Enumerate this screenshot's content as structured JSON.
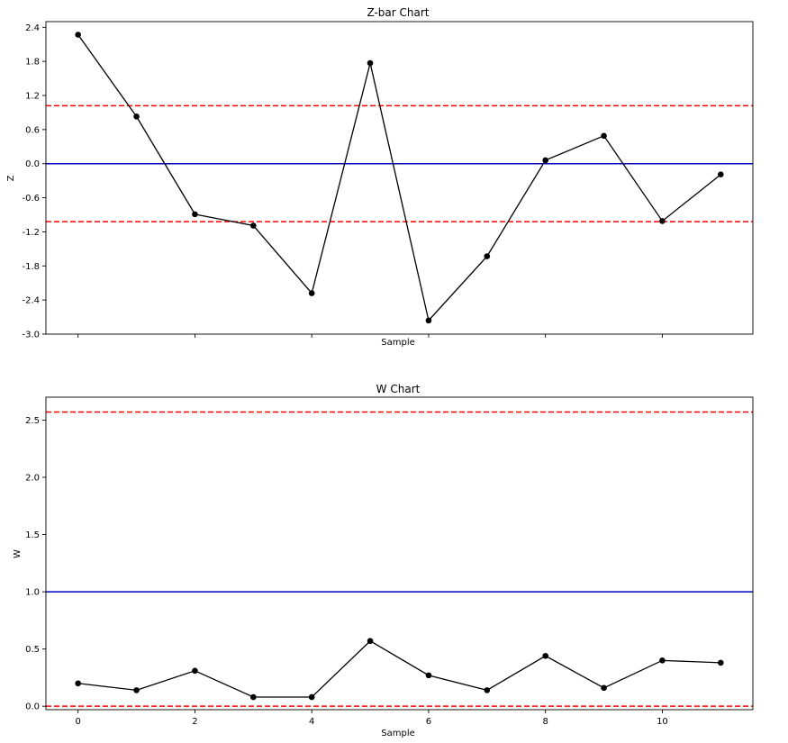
{
  "chart_data": [
    {
      "type": "line",
      "title": "Z-bar Chart",
      "xlabel": "Sample",
      "ylabel": "Z",
      "x": [
        0,
        1,
        2,
        3,
        4,
        5,
        6,
        7,
        8,
        9,
        10,
        11
      ],
      "xlim": [
        -0.55,
        11.55
      ],
      "ylim": [
        -3.0,
        2.5
      ],
      "yticks": [
        "2.4",
        "1.8",
        "1.2",
        "0.6",
        "0.0",
        "-0.6",
        "-1.2",
        "-1.8",
        "-2.4",
        "-3.0"
      ],
      "ytick_values": [
        2.4,
        1.8,
        1.2,
        0.6,
        0.0,
        -0.6,
        -1.2,
        -1.8,
        -2.4,
        -3.0
      ],
      "xticks": [
        0,
        2,
        4,
        6,
        8,
        10
      ],
      "xtick_labels_shown": false,
      "series": [
        {
          "values": [
            2.27,
            0.83,
            -0.89,
            -1.09,
            -2.28,
            1.77,
            -2.76,
            -1.63,
            0.06,
            0.49,
            -1.01,
            -0.19
          ],
          "color": "#000000",
          "marker": "circle"
        }
      ],
      "hlines": [
        {
          "value": 1.02,
          "color": "#ff0000",
          "style": "dashed"
        },
        {
          "value": 0.0,
          "color": "#0000bf",
          "style": "solid"
        },
        {
          "value": -1.02,
          "color": "#ff0000",
          "style": "dashed"
        }
      ],
      "grid": false
    },
    {
      "type": "line",
      "title": "W Chart",
      "xlabel": "Sample",
      "ylabel": "W",
      "x": [
        0,
        1,
        2,
        3,
        4,
        5,
        6,
        7,
        8,
        9,
        10,
        11
      ],
      "xlim": [
        -0.55,
        11.55
      ],
      "ylim": [
        -0.03,
        2.7
      ],
      "yticks": [
        "2.5",
        "2.0",
        "1.5",
        "1.0",
        "0.5",
        "0.0"
      ],
      "ytick_values": [
        2.5,
        2.0,
        1.5,
        1.0,
        0.5,
        0.0
      ],
      "xticks": [
        "0",
        "2",
        "4",
        "6",
        "8",
        "10"
      ],
      "xtick_values": [
        0,
        2,
        4,
        6,
        8,
        10
      ],
      "series": [
        {
          "values": [
            0.2,
            0.14,
            0.31,
            0.08,
            0.08,
            0.57,
            0.27,
            0.14,
            0.44,
            0.16,
            0.4,
            0.38
          ],
          "color": "#000000",
          "marker": "circle"
        }
      ],
      "hlines": [
        {
          "value": 2.57,
          "color": "#ff0000",
          "style": "dashed"
        },
        {
          "value": 1.0,
          "color": "#0000bf",
          "style": "solid"
        },
        {
          "value": 0.0,
          "color": "#ff0000",
          "style": "dashed"
        }
      ],
      "grid": false
    }
  ]
}
